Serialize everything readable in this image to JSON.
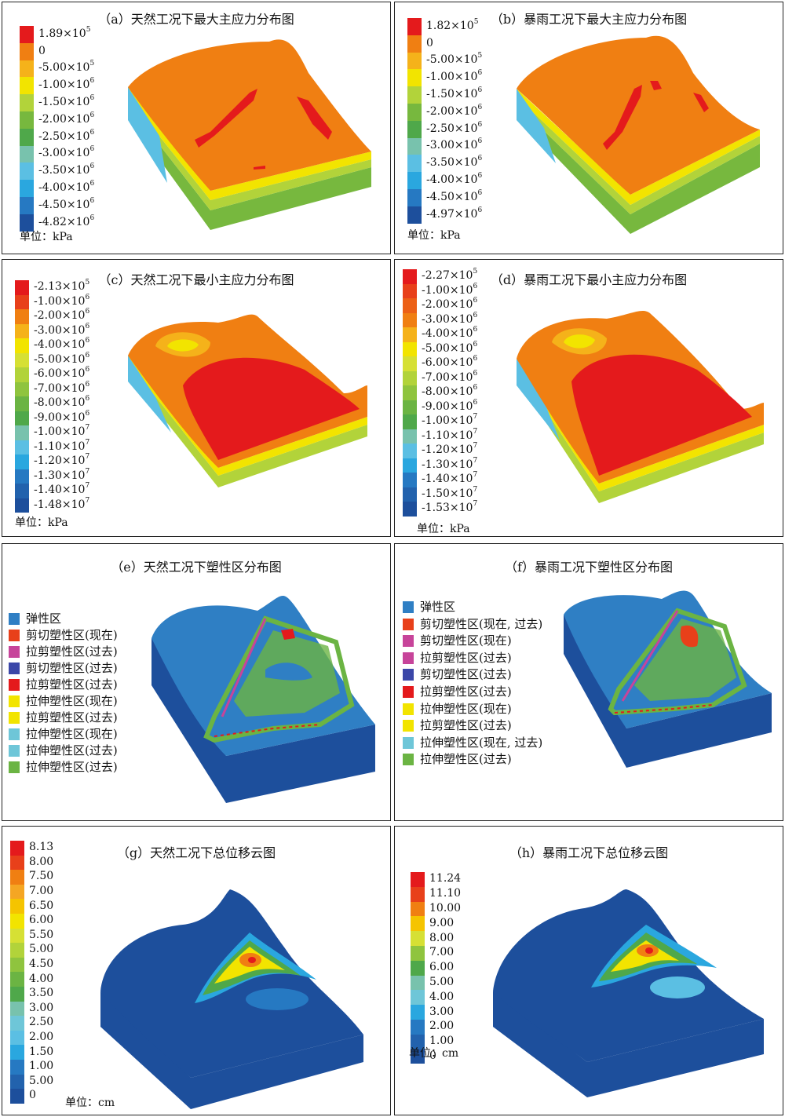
{
  "panels": [
    {
      "id": "a",
      "title": "（a）天然工况下最大主应力分布图",
      "unit": "单位：kPa",
      "legend": [
        {
          "label": "1.89×10",
          "exp": "5",
          "color": "#e41a1c"
        },
        {
          "label": "0",
          "exp": "",
          "color": "#f07f12"
        },
        {
          "label": "-5.00×10",
          "exp": "5",
          "color": "#f5b21a"
        },
        {
          "label": "-1.00×10",
          "exp": "6",
          "color": "#f2e400"
        },
        {
          "label": "-1.50×10",
          "exp": "6",
          "color": "#b2d33a"
        },
        {
          "label": "-2.00×10",
          "exp": "6",
          "color": "#77b83e"
        },
        {
          "label": "-2.50×10",
          "exp": "6",
          "color": "#4fa84a"
        },
        {
          "label": "-3.00×10",
          "exp": "6",
          "color": "#78c2ad"
        },
        {
          "label": "-3.50×10",
          "exp": "6",
          "color": "#5bbfe3"
        },
        {
          "label": "-4.00×10",
          "exp": "6",
          "color": "#2aa7df"
        },
        {
          "label": "-4.50×10",
          "exp": "6",
          "color": "#2679c2"
        },
        {
          "label": "-4.82×10",
          "exp": "6",
          "color": "#1d4f9c"
        }
      ]
    },
    {
      "id": "b",
      "title": "（b）暴雨工况下最大主应力分布图",
      "unit": "单位：kPa",
      "legend": [
        {
          "label": "1.82×10",
          "exp": "5",
          "color": "#e41a1c"
        },
        {
          "label": "0",
          "exp": "",
          "color": "#f07f12"
        },
        {
          "label": "-5.00×10",
          "exp": "5",
          "color": "#f5b21a"
        },
        {
          "label": "-1.00×10",
          "exp": "6",
          "color": "#f2e400"
        },
        {
          "label": "-1.50×10",
          "exp": "6",
          "color": "#b2d33a"
        },
        {
          "label": "-2.00×10",
          "exp": "6",
          "color": "#77b83e"
        },
        {
          "label": "-2.50×10",
          "exp": "6",
          "color": "#4fa84a"
        },
        {
          "label": "-3.00×10",
          "exp": "6",
          "color": "#78c2ad"
        },
        {
          "label": "-3.50×10",
          "exp": "6",
          "color": "#5bbfe3"
        },
        {
          "label": "-4.00×10",
          "exp": "6",
          "color": "#2aa7df"
        },
        {
          "label": "-4.50×10",
          "exp": "6",
          "color": "#2679c2"
        },
        {
          "label": "-4.97×10",
          "exp": "6",
          "color": "#1d4f9c"
        }
      ]
    },
    {
      "id": "c",
      "title": "（c）天然工况下最小主应力分布图",
      "unit": "单位：kPa",
      "legend": [
        {
          "label": "-2.13×10",
          "exp": "5",
          "color": "#e41a1c"
        },
        {
          "label": "-1.00×10",
          "exp": "6",
          "color": "#e8401a"
        },
        {
          "label": "-2.00×10",
          "exp": "6",
          "color": "#f07f12"
        },
        {
          "label": "-3.00×10",
          "exp": "6",
          "color": "#f5b21a"
        },
        {
          "label": "-4.00×10",
          "exp": "6",
          "color": "#f2e400"
        },
        {
          "label": "-5.00×10",
          "exp": "6",
          "color": "#d6e034"
        },
        {
          "label": "-6.00×10",
          "exp": "6",
          "color": "#b2d33a"
        },
        {
          "label": "-7.00×10",
          "exp": "6",
          "color": "#8fc43e"
        },
        {
          "label": "-8.00×10",
          "exp": "6",
          "color": "#6bb443"
        },
        {
          "label": "-9.00×10",
          "exp": "6",
          "color": "#4fa84a"
        },
        {
          "label": "-1.00×10",
          "exp": "7",
          "color": "#78c2ad"
        },
        {
          "label": "-1.10×10",
          "exp": "7",
          "color": "#5bbfe3"
        },
        {
          "label": "-1.20×10",
          "exp": "7",
          "color": "#2aa7df"
        },
        {
          "label": "-1.30×10",
          "exp": "7",
          "color": "#2679c2"
        },
        {
          "label": "-1.40×10",
          "exp": "7",
          "color": "#2262ad"
        },
        {
          "label": "-1.48×10",
          "exp": "7",
          "color": "#1d4f9c"
        }
      ]
    },
    {
      "id": "d",
      "title": "（d）暴雨工况下最小主应力分布图",
      "unit": "单位：kPa",
      "legend": [
        {
          "label": "-2.27×10",
          "exp": "5",
          "color": "#e41a1c"
        },
        {
          "label": "-1.00×10",
          "exp": "6",
          "color": "#e8401a"
        },
        {
          "label": "-2.00×10",
          "exp": "6",
          "color": "#ec6016"
        },
        {
          "label": "-3.00×10",
          "exp": "6",
          "color": "#f07f12"
        },
        {
          "label": "-4.00×10",
          "exp": "6",
          "color": "#f5b21a"
        },
        {
          "label": "-5.00×10",
          "exp": "6",
          "color": "#f2e400"
        },
        {
          "label": "-6.00×10",
          "exp": "6",
          "color": "#d6e034"
        },
        {
          "label": "-7.00×10",
          "exp": "6",
          "color": "#b2d33a"
        },
        {
          "label": "-8.00×10",
          "exp": "6",
          "color": "#8fc43e"
        },
        {
          "label": "-9.00×10",
          "exp": "6",
          "color": "#6bb443"
        },
        {
          "label": "-1.00×10",
          "exp": "7",
          "color": "#4fa84a"
        },
        {
          "label": "-1.10×10",
          "exp": "7",
          "color": "#78c2ad"
        },
        {
          "label": "-1.20×10",
          "exp": "7",
          "color": "#5bbfe3"
        },
        {
          "label": "-1.30×10",
          "exp": "7",
          "color": "#2aa7df"
        },
        {
          "label": "-1.40×10",
          "exp": "7",
          "color": "#2679c2"
        },
        {
          "label": "-1.50×10",
          "exp": "7",
          "color": "#2262ad"
        },
        {
          "label": "-1.53×10",
          "exp": "7",
          "color": "#1d4f9c"
        }
      ]
    },
    {
      "id": "e",
      "title": "（e）天然工况下塑性区分布图",
      "unit": "",
      "legend": [
        {
          "label": "弹性区",
          "exp": "",
          "color": "#2f7fc4"
        },
        {
          "label": "剪切塑性区(现在)",
          "exp": "",
          "color": "#e8401a"
        },
        {
          "label": "拉剪塑性区(过去)",
          "exp": "",
          "color": "#c7449a"
        },
        {
          "label": "剪切塑性区(过去)",
          "exp": "",
          "color": "#3b47a8"
        },
        {
          "label": "拉剪塑性区(过去)",
          "exp": "",
          "color": "#e41a1c"
        },
        {
          "label": "拉伸塑性区(现在)",
          "exp": "",
          "color": "#f2e400"
        },
        {
          "label": "拉剪塑性区(过去)",
          "exp": "",
          "color": "#f2e400"
        },
        {
          "label": "拉伸塑性区(现在)",
          "exp": "",
          "color": "#6ec6d8"
        },
        {
          "label": "拉伸塑性区(过去)",
          "exp": "",
          "color": "#6ec6d8"
        },
        {
          "label": "拉伸塑性区(过去)",
          "exp": "",
          "color": "#6bb443"
        }
      ]
    },
    {
      "id": "f",
      "title": "（f）暴雨工况下塑性区分布图",
      "unit": "",
      "legend": [
        {
          "label": "弹性区",
          "exp": "",
          "color": "#2f7fc4"
        },
        {
          "label": "剪切塑性区(现在, 过去)",
          "exp": "",
          "color": "#e8401a"
        },
        {
          "label": "剪切塑性区(现在)",
          "exp": "",
          "color": "#c7449a"
        },
        {
          "label": "拉剪塑性区(过去)",
          "exp": "",
          "color": "#c7449a"
        },
        {
          "label": "剪切塑性区(过去)",
          "exp": "",
          "color": "#3b47a8"
        },
        {
          "label": "拉剪塑性区(过去)",
          "exp": "",
          "color": "#e41a1c"
        },
        {
          "label": "拉伸塑性区(现在)",
          "exp": "",
          "color": "#f2e400"
        },
        {
          "label": "拉剪塑性区(过去)",
          "exp": "",
          "color": "#f2e400"
        },
        {
          "label": "拉伸塑性区(现在, 过去)",
          "exp": "",
          "color": "#6ec6d8"
        },
        {
          "label": "拉伸塑性区(过去)",
          "exp": "",
          "color": "#6bb443"
        }
      ]
    },
    {
      "id": "g",
      "title": "（g）天然工况下总位移云图",
      "unit": "单位：cm",
      "legend": [
        {
          "label": "8.13",
          "exp": "",
          "color": "#e41a1c"
        },
        {
          "label": "8.00",
          "exp": "",
          "color": "#e8401a"
        },
        {
          "label": "7.50",
          "exp": "",
          "color": "#f07f12"
        },
        {
          "label": "7.00",
          "exp": "",
          "color": "#f5a623"
        },
        {
          "label": "6.50",
          "exp": "",
          "color": "#f5c400"
        },
        {
          "label": "6.00",
          "exp": "",
          "color": "#f2e400"
        },
        {
          "label": "5.50",
          "exp": "",
          "color": "#d6e034"
        },
        {
          "label": "5.00",
          "exp": "",
          "color": "#b2d33a"
        },
        {
          "label": "4.50",
          "exp": "",
          "color": "#8fc43e"
        },
        {
          "label": "4.00",
          "exp": "",
          "color": "#6bb443"
        },
        {
          "label": "3.50",
          "exp": "",
          "color": "#4fa84a"
        },
        {
          "label": "3.00",
          "exp": "",
          "color": "#78c2ad"
        },
        {
          "label": "2.50",
          "exp": "",
          "color": "#6ec6d8"
        },
        {
          "label": "2.00",
          "exp": "",
          "color": "#5bbfe3"
        },
        {
          "label": "1.50",
          "exp": "",
          "color": "#2aa7df"
        },
        {
          "label": "1.00",
          "exp": "",
          "color": "#2679c2"
        },
        {
          "label": "5.00",
          "exp": "",
          "color": "#2262ad"
        },
        {
          "label": "0",
          "exp": "",
          "color": "#1d4f9c"
        }
      ]
    },
    {
      "id": "h",
      "title": "（h）暴雨工况下总位移云图",
      "unit": "单位：cm",
      "legend": [
        {
          "label": "11.24",
          "exp": "",
          "color": "#e41a1c"
        },
        {
          "label": "11.10",
          "exp": "",
          "color": "#e8401a"
        },
        {
          "label": "10.00",
          "exp": "",
          "color": "#f07f12"
        },
        {
          "label": "9.00",
          "exp": "",
          "color": "#f5c400"
        },
        {
          "label": "8.00",
          "exp": "",
          "color": "#d6e034"
        },
        {
          "label": "7.00",
          "exp": "",
          "color": "#8fc43e"
        },
        {
          "label": "6.00",
          "exp": "",
          "color": "#4fa84a"
        },
        {
          "label": "5.00",
          "exp": "",
          "color": "#78c2ad"
        },
        {
          "label": "4.00",
          "exp": "",
          "color": "#6ec6d8"
        },
        {
          "label": "3.00",
          "exp": "",
          "color": "#2aa7df"
        },
        {
          "label": "2.00",
          "exp": "",
          "color": "#2679c2"
        },
        {
          "label": "1.00",
          "exp": "",
          "color": "#2262ad"
        },
        {
          "label": "0",
          "exp": "",
          "color": "#1d4f9c"
        }
      ]
    }
  ]
}
